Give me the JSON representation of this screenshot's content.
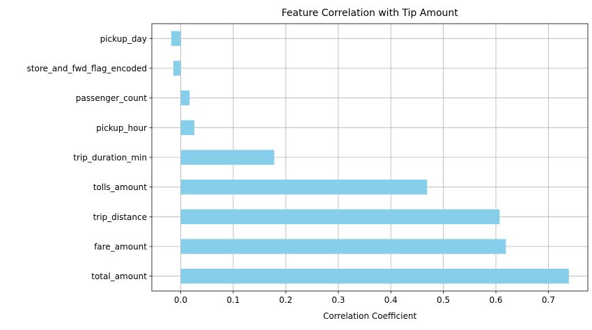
{
  "chart_data": {
    "type": "bar",
    "orientation": "horizontal",
    "title": "Feature Correlation with Tip Amount",
    "xlabel": "Correlation Coefficient",
    "ylabel": "",
    "xlim": [
      -0.055,
      0.775
    ],
    "xticks": [
      0.0,
      0.1,
      0.2,
      0.3,
      0.4,
      0.5,
      0.6,
      0.7
    ],
    "xtick_labels": [
      "0.0",
      "0.1",
      "0.2",
      "0.3",
      "0.4",
      "0.5",
      "0.6",
      "0.7"
    ],
    "grid": true,
    "bar_color": "#87ceeb",
    "categories": [
      "pickup_day",
      "store_and_fwd_flag_encoded",
      "passenger_count",
      "pickup_hour",
      "trip_duration_min",
      "tolls_amount",
      "trip_distance",
      "fare_amount",
      "total_amount"
    ],
    "values": [
      -0.018,
      -0.014,
      0.017,
      0.026,
      0.178,
      0.469,
      0.607,
      0.619,
      0.739
    ]
  }
}
